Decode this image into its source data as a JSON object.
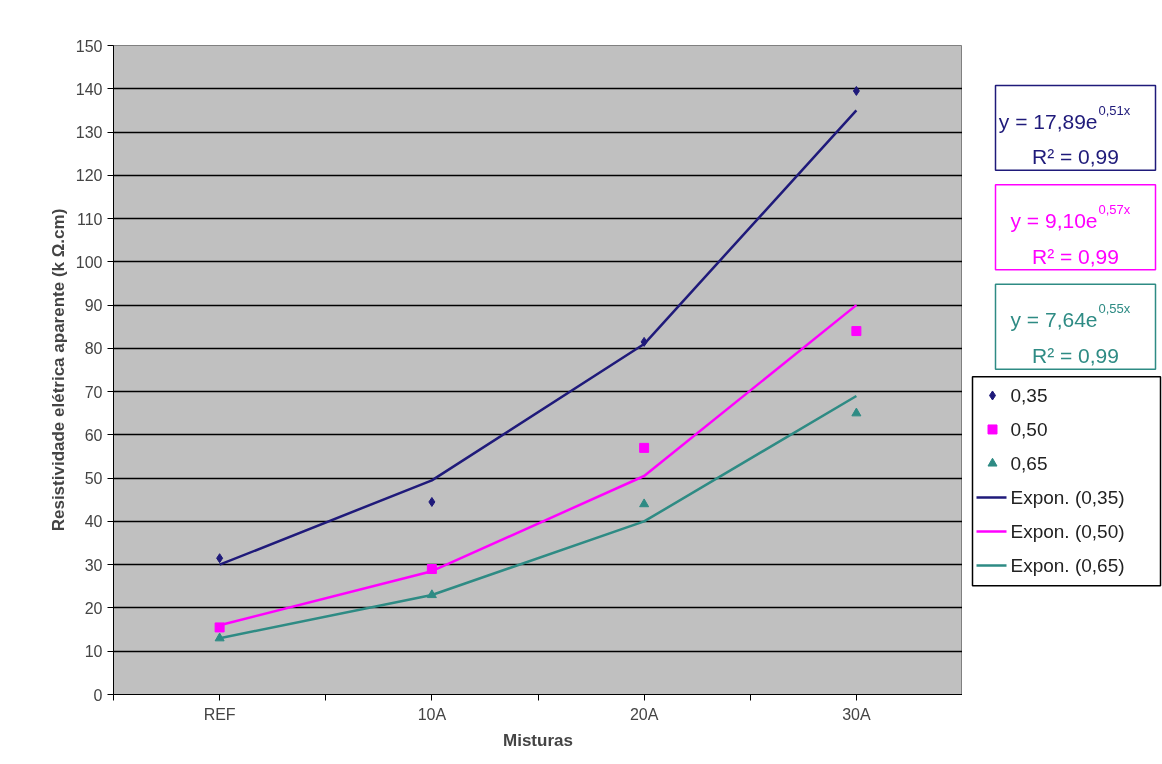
{
  "chart_data": {
    "type": "scatter",
    "xlabel": "Misturas",
    "ylabel": "Resistividade elétrica aparente (k Ω.cm)",
    "categories": [
      "REF",
      "10A",
      "20A",
      "30A"
    ],
    "ylim": [
      0,
      150
    ],
    "yticks": [
      0,
      10,
      20,
      30,
      40,
      50,
      60,
      70,
      80,
      90,
      100,
      110,
      120,
      130,
      140,
      150
    ],
    "grid": "y",
    "legend": "right",
    "series": [
      {
        "name": "0,35",
        "marker": "diamond",
        "color": "#1f1a7a",
        "values": [
          31.5,
          44.5,
          81.5,
          139.5
        ]
      },
      {
        "name": "0,50",
        "marker": "square",
        "color": "#ff00ff",
        "values": [
          15.5,
          29,
          57,
          84
        ]
      },
      {
        "name": "0,65",
        "marker": "triangle",
        "color": "#2e8b84",
        "values": [
          13,
          23,
          44,
          65
        ]
      },
      {
        "name": "Expon. (0,35)",
        "type": "line",
        "color": "#1f1a7a",
        "values": [
          30,
          49.5,
          81,
          135
        ]
      },
      {
        "name": "Expon. (0,50)",
        "type": "line",
        "color": "#ff00ff",
        "values": [
          16,
          28.5,
          50.5,
          90
        ]
      },
      {
        "name": "Expon. (0,65)",
        "type": "line",
        "color": "#2e8b84",
        "values": [
          13,
          23,
          40,
          69
        ]
      }
    ],
    "annotations": [
      "y = 17,89e$^{0,51x}$\nR² = 0,99",
      "y = 9,10e$^{0,57x}$\nR² = 0,99",
      "y = 7,64e$^{0,55x}$\nR² = 0,99"
    ]
  }
}
